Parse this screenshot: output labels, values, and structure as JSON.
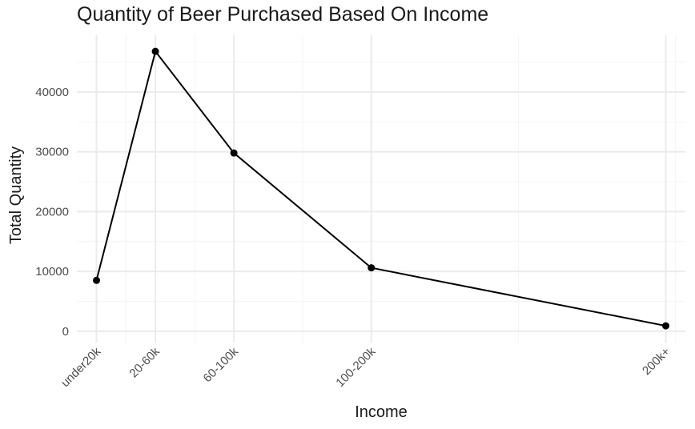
{
  "chart_data": {
    "type": "line",
    "title": "Quantity of Beer Purchased Based On Income",
    "xlabel": "Income",
    "ylabel": "Total Quantity",
    "categories": [
      "under20k",
      "20-60k",
      "60-100k",
      "100-200k",
      "200k+"
    ],
    "x": [
      10,
      40,
      80,
      150,
      300
    ],
    "values": [
      8500,
      46800,
      29800,
      10600,
      900
    ],
    "xlim": [
      0,
      310
    ],
    "ylim": [
      -1900,
      49500
    ],
    "y_ticks": [
      0,
      10000,
      20000,
      30000,
      40000
    ],
    "y_tick_labels": [
      "0",
      "10000",
      "20000",
      "30000",
      "40000"
    ],
    "x_minor_breaks": [
      25,
      60,
      115,
      225,
      305
    ],
    "y_minor_breaks": [
      5000,
      15000,
      25000,
      35000,
      45000
    ],
    "grid": true,
    "legend": "none",
    "colors": {
      "line": "#000000",
      "point": "#000000",
      "grid_major": "#ebebeb",
      "grid_minor": "#f4f4f4",
      "text": "#1a1a1a",
      "tick_text": "#4d4d4d"
    }
  }
}
